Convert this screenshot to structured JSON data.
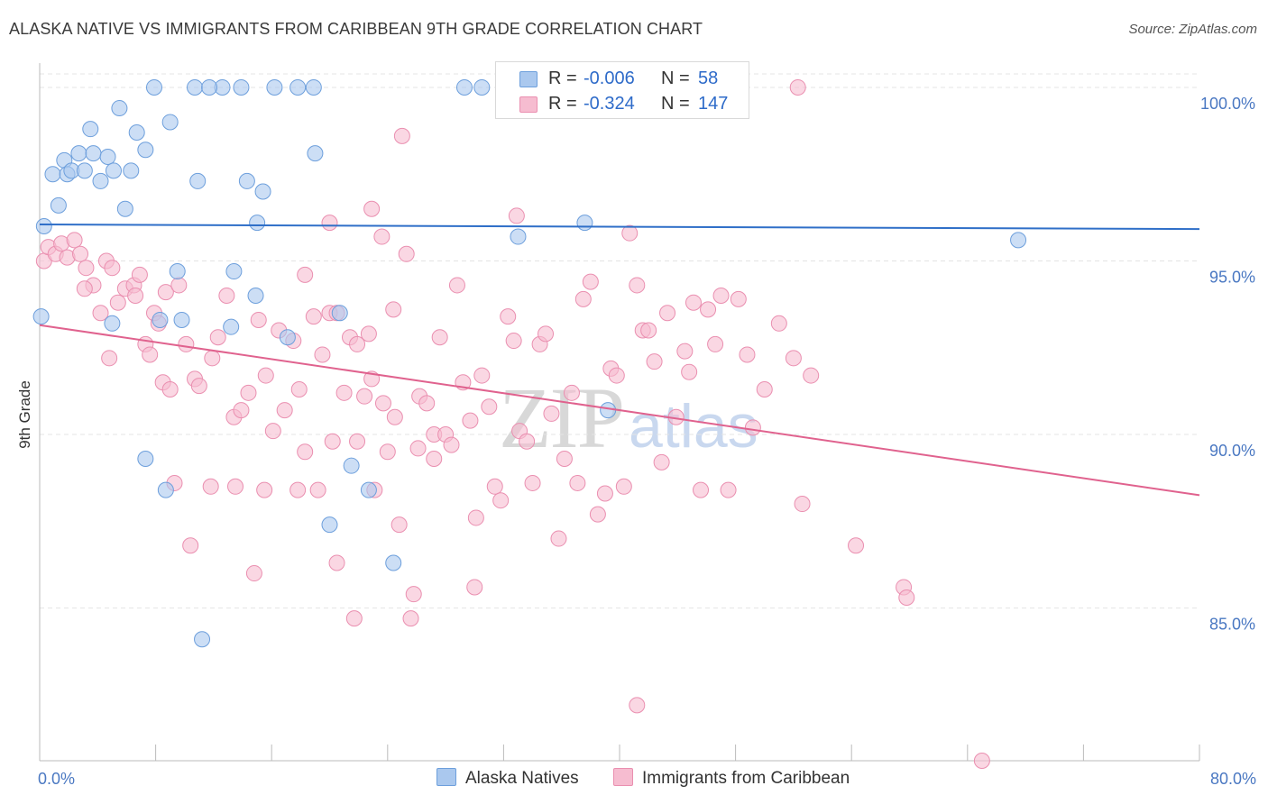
{
  "title": "ALASKA NATIVE VS IMMIGRANTS FROM CARIBBEAN 9TH GRADE CORRELATION CHART",
  "source": "Source: ZipAtlas.com",
  "watermark": {
    "zip": "ZIP",
    "atlas": "atlas"
  },
  "stats": {
    "series1": {
      "r_label": "R =",
      "r_value": "-0.006",
      "n_label": "N =",
      "n_value": "58"
    },
    "series2": {
      "r_label": "R =",
      "r_value": "-0.324",
      "n_label": "N =",
      "n_value": "147"
    }
  },
  "legend": {
    "series1": "Alaska Natives",
    "series2": "Immigrants from Caribbean"
  },
  "colors": {
    "blue_fill": "#aac8ee",
    "blue_stroke": "#6d9fdc",
    "blue_line": "#2f6fc8",
    "pink_fill": "#f6bcd0",
    "pink_stroke": "#ea8fb0",
    "pink_line": "#e0628e",
    "grid": "#e4e4e4",
    "axis_text": "#4a78c2"
  },
  "chart_data": {
    "type": "scatter",
    "ylabel": "9th Grade",
    "xlim": [
      0,
      80
    ],
    "ylim": [
      80.6,
      100.7
    ],
    "x_ticks": [
      {
        "value": 0,
        "label": "0.0%"
      },
      {
        "value": 80,
        "label": "80.0%"
      }
    ],
    "y_ticks": [
      {
        "value": 85,
        "label": "85.0%"
      },
      {
        "value": 90,
        "label": "90.0%"
      },
      {
        "value": 95,
        "label": "95.0%"
      },
      {
        "value": 100,
        "label": "100.0%"
      }
    ],
    "grid": true,
    "legend_position": "bottom-center",
    "series": [
      {
        "name": "Alaska Natives",
        "trend": {
          "x": [
            0,
            80
          ],
          "y": [
            96.05,
            95.92
          ]
        },
        "points": [
          [
            0.1,
            93.4
          ],
          [
            0.3,
            96.0
          ],
          [
            0.9,
            97.5
          ],
          [
            1.3,
            96.6
          ],
          [
            1.7,
            97.9
          ],
          [
            1.9,
            97.5
          ],
          [
            2.2,
            97.6
          ],
          [
            2.7,
            98.1
          ],
          [
            3.1,
            97.6
          ],
          [
            3.5,
            98.8
          ],
          [
            3.7,
            98.1
          ],
          [
            4.2,
            97.3
          ],
          [
            4.7,
            98.0
          ],
          [
            5.1,
            97.6
          ],
          [
            5.5,
            99.4
          ],
          [
            5.9,
            96.5
          ],
          [
            6.3,
            97.6
          ],
          [
            6.7,
            98.7
          ],
          [
            7.3,
            98.2
          ],
          [
            7.9,
            100.0
          ],
          [
            9.0,
            99.0
          ],
          [
            10.7,
            100.0
          ],
          [
            12.6,
            100.0
          ],
          [
            13.9,
            100.0
          ],
          [
            16.2,
            100.0
          ],
          [
            17.8,
            100.0
          ],
          [
            18.9,
            100.0
          ],
          [
            19.0,
            98.1
          ],
          [
            30.5,
            100.0
          ],
          [
            41.5,
            100.0
          ],
          [
            44.7,
            100.0
          ],
          [
            10.9,
            97.3
          ],
          [
            14.3,
            97.3
          ],
          [
            15.4,
            97.0
          ],
          [
            15.0,
            96.1
          ],
          [
            33.0,
            95.7
          ],
          [
            37.6,
            96.1
          ],
          [
            67.5,
            95.6
          ],
          [
            9.5,
            94.7
          ],
          [
            13.4,
            94.7
          ],
          [
            14.9,
            94.0
          ],
          [
            20.7,
            93.5
          ],
          [
            9.8,
            93.3
          ],
          [
            5.0,
            93.2
          ],
          [
            8.3,
            93.3
          ],
          [
            13.2,
            93.1
          ],
          [
            17.1,
            92.8
          ],
          [
            39.2,
            90.7
          ],
          [
            7.3,
            89.3
          ],
          [
            21.5,
            89.1
          ],
          [
            22.7,
            88.4
          ],
          [
            8.7,
            88.4
          ],
          [
            20.0,
            87.4
          ],
          [
            24.4,
            86.3
          ],
          [
            11.2,
            84.1
          ],
          [
            11.7,
            100.0
          ],
          [
            33.9,
            100.0
          ],
          [
            29.3,
            100.0
          ]
        ]
      },
      {
        "name": "Immigrants from Caribbean",
        "trend": {
          "x": [
            0,
            80
          ],
          "y": [
            93.15,
            88.25
          ]
        },
        "points": [
          [
            0.3,
            95.0
          ],
          [
            0.6,
            95.4
          ],
          [
            1.1,
            95.2
          ],
          [
            1.5,
            95.5
          ],
          [
            1.9,
            95.1
          ],
          [
            2.4,
            95.6
          ],
          [
            2.8,
            95.2
          ],
          [
            3.2,
            94.8
          ],
          [
            3.7,
            94.3
          ],
          [
            4.2,
            93.5
          ],
          [
            4.6,
            95.0
          ],
          [
            5.0,
            94.8
          ],
          [
            5.4,
            93.8
          ],
          [
            5.9,
            94.2
          ],
          [
            6.5,
            94.3
          ],
          [
            6.9,
            94.6
          ],
          [
            7.3,
            92.6
          ],
          [
            7.9,
            93.5
          ],
          [
            8.2,
            93.2
          ],
          [
            8.7,
            94.1
          ],
          [
            3.1,
            94.2
          ],
          [
            4.8,
            92.2
          ],
          [
            6.6,
            94.0
          ],
          [
            7.6,
            92.3
          ],
          [
            8.5,
            91.5
          ],
          [
            9.0,
            91.3
          ],
          [
            9.6,
            94.3
          ],
          [
            10.1,
            92.6
          ],
          [
            10.7,
            91.6
          ],
          [
            11.0,
            91.4
          ],
          [
            11.9,
            92.2
          ],
          [
            12.3,
            92.8
          ],
          [
            12.9,
            94.0
          ],
          [
            13.4,
            90.5
          ],
          [
            13.9,
            90.7
          ],
          [
            14.4,
            91.2
          ],
          [
            15.1,
            93.3
          ],
          [
            15.6,
            91.7
          ],
          [
            16.1,
            90.1
          ],
          [
            16.5,
            93.0
          ],
          [
            16.9,
            90.7
          ],
          [
            17.5,
            92.7
          ],
          [
            17.9,
            91.3
          ],
          [
            18.3,
            94.6
          ],
          [
            18.9,
            93.4
          ],
          [
            19.5,
            92.3
          ],
          [
            20.0,
            93.5
          ],
          [
            20.5,
            93.5
          ],
          [
            21.0,
            91.2
          ],
          [
            21.4,
            92.8
          ],
          [
            21.9,
            92.6
          ],
          [
            22.4,
            91.1
          ],
          [
            22.7,
            92.9
          ],
          [
            23.1,
            88.4
          ],
          [
            23.6,
            95.7
          ],
          [
            24.0,
            89.5
          ],
          [
            24.4,
            93.6
          ],
          [
            24.8,
            87.4
          ],
          [
            25.3,
            95.2
          ],
          [
            25.8,
            85.4
          ],
          [
            26.2,
            91.1
          ],
          [
            26.7,
            90.9
          ],
          [
            27.2,
            90.0
          ],
          [
            27.6,
            92.8
          ],
          [
            28.0,
            90.0
          ],
          [
            28.4,
            89.7
          ],
          [
            28.8,
            94.3
          ],
          [
            29.2,
            91.5
          ],
          [
            29.7,
            90.4
          ],
          [
            30.1,
            87.6
          ],
          [
            30.5,
            91.7
          ],
          [
            31.0,
            90.8
          ],
          [
            31.4,
            88.5
          ],
          [
            31.8,
            88.1
          ],
          [
            32.3,
            93.4
          ],
          [
            32.7,
            92.7
          ],
          [
            33.1,
            90.1
          ],
          [
            33.6,
            89.8
          ],
          [
            34.0,
            88.6
          ],
          [
            34.5,
            92.6
          ],
          [
            34.9,
            92.9
          ],
          [
            35.3,
            90.6
          ],
          [
            35.8,
            87.0
          ],
          [
            36.2,
            89.3
          ],
          [
            36.7,
            91.2
          ],
          [
            37.1,
            88.6
          ],
          [
            37.5,
            93.9
          ],
          [
            38.0,
            94.4
          ],
          [
            38.5,
            87.7
          ],
          [
            39.0,
            88.3
          ],
          [
            39.4,
            91.9
          ],
          [
            39.8,
            91.7
          ],
          [
            40.3,
            88.5
          ],
          [
            40.7,
            95.8
          ],
          [
            41.2,
            94.3
          ],
          [
            41.6,
            93.0
          ],
          [
            42.0,
            93.0
          ],
          [
            42.4,
            92.1
          ],
          [
            42.9,
            89.2
          ],
          [
            43.3,
            93.5
          ],
          [
            43.9,
            90.5
          ],
          [
            44.5,
            92.4
          ],
          [
            44.8,
            91.8
          ],
          [
            45.1,
            93.8
          ],
          [
            45.6,
            88.4
          ],
          [
            46.1,
            93.6
          ],
          [
            46.6,
            92.6
          ],
          [
            47.0,
            94.0
          ],
          [
            47.5,
            88.4
          ],
          [
            48.2,
            93.9
          ],
          [
            48.8,
            92.3
          ],
          [
            49.2,
            90.2
          ],
          [
            50.0,
            91.3
          ],
          [
            51.0,
            93.2
          ],
          [
            52.0,
            92.2
          ],
          [
            52.6,
            88.0
          ],
          [
            53.2,
            91.7
          ],
          [
            56.3,
            86.8
          ],
          [
            59.6,
            85.6
          ],
          [
            59.8,
            85.3
          ],
          [
            65.0,
            80.6
          ],
          [
            20.0,
            96.1
          ],
          [
            22.9,
            96.5
          ],
          [
            32.9,
            96.3
          ],
          [
            25.0,
            98.6
          ],
          [
            52.3,
            100.0
          ],
          [
            41.2,
            82.2
          ],
          [
            14.8,
            86.0
          ],
          [
            20.5,
            86.3
          ],
          [
            21.7,
            84.7
          ],
          [
            25.6,
            84.7
          ],
          [
            30.0,
            85.6
          ],
          [
            10.4,
            86.8
          ],
          [
            9.3,
            88.6
          ],
          [
            11.8,
            88.5
          ],
          [
            13.5,
            88.5
          ],
          [
            15.5,
            88.4
          ],
          [
            17.8,
            88.4
          ],
          [
            18.3,
            89.5
          ],
          [
            19.2,
            88.4
          ],
          [
            20.2,
            89.8
          ],
          [
            21.9,
            89.8
          ],
          [
            22.9,
            91.6
          ],
          [
            23.7,
            90.9
          ],
          [
            24.5,
            90.5
          ],
          [
            26.1,
            89.6
          ],
          [
            27.2,
            89.3
          ]
        ]
      }
    ]
  }
}
